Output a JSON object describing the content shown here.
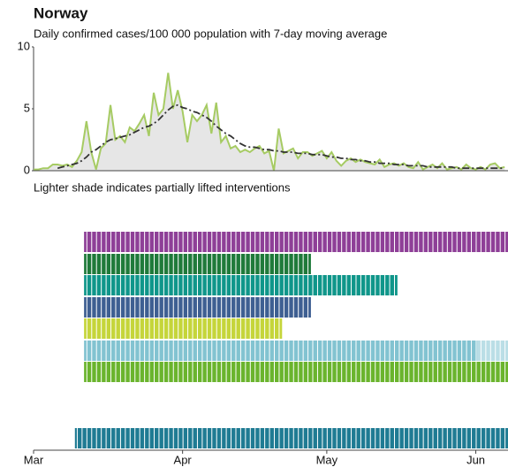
{
  "chart_data": [
    {
      "type": "line",
      "title": "Norway",
      "subtitle": "Daily confirmed cases/100 000 population with 7-day moving average",
      "x": [
        0,
        1,
        2,
        3,
        4,
        5,
        6,
        7,
        8,
        9,
        10,
        11,
        12,
        13,
        14,
        15,
        16,
        17,
        18,
        19,
        20,
        21,
        22,
        23,
        24,
        25,
        26,
        27,
        28,
        29,
        30,
        31,
        32,
        33,
        34,
        35,
        36,
        37,
        38,
        39,
        40,
        41,
        42,
        43,
        44,
        45,
        46,
        47,
        48,
        49,
        50,
        51,
        52,
        53,
        54,
        55,
        56,
        57,
        58,
        59,
        60,
        61,
        62,
        63,
        64,
        65,
        66,
        67,
        68,
        69,
        70,
        71,
        72,
        73,
        74,
        75,
        76,
        77,
        78,
        79,
        80,
        81,
        82,
        83,
        84,
        85,
        86,
        87,
        88,
        89,
        90,
        91,
        92,
        93,
        94,
        95,
        96,
        97,
        98
      ],
      "xlim": [
        0,
        98.7
      ],
      "ylim": [
        0,
        10
      ],
      "yticks": [
        0,
        5,
        10
      ],
      "series": [
        {
          "name": "Daily confirmed cases",
          "color": "#a6cb63",
          "area_color": "#e6e6e6",
          "values": [
            0.1,
            0.1,
            0.2,
            0.2,
            0.5,
            0.5,
            0.4,
            0.5,
            0.3,
            0.8,
            1.5,
            4.0,
            1.5,
            0.1,
            1.8,
            2.2,
            5.3,
            2.5,
            2.8,
            2.3,
            3.5,
            3.2,
            3.8,
            4.5,
            2.8,
            6.3,
            4.5,
            5.0,
            7.9,
            5.0,
            6.5,
            4.8,
            2.3,
            4.5,
            4.0,
            4.5,
            5.3,
            3.0,
            5.5,
            2.3,
            2.8,
            1.8,
            2.0,
            1.5,
            1.7,
            1.5,
            1.8,
            2.0,
            1.4,
            1.6,
            0.0,
            3.4,
            1.4,
            1.6,
            1.8,
            1.0,
            1.5,
            1.5,
            1.2,
            1.4,
            1.6,
            1.0,
            1.5,
            0.8,
            0.4,
            0.8,
            1.0,
            0.7,
            0.9,
            0.7,
            0.6,
            0.5,
            0.9,
            0.3,
            0.5,
            0.6,
            0.4,
            0.6,
            0.3,
            0.2,
            0.7,
            0.1,
            0.3,
            0.5,
            0.2,
            0.6,
            0.1,
            0.2,
            0.3,
            0.1,
            0.5,
            0.2,
            0.1,
            0.3,
            0.1,
            0.5,
            0.6,
            0.2,
            0.3
          ]
        },
        {
          "name": "7-day moving average",
          "color": "#333333",
          "values": [
            null,
            null,
            null,
            null,
            null,
            0.2,
            0.3,
            0.4,
            0.5,
            0.6,
            0.8,
            1.1,
            1.5,
            1.7,
            2.0,
            2.3,
            2.5,
            2.6,
            2.7,
            2.8,
            2.9,
            3.1,
            3.3,
            3.5,
            3.6,
            3.8,
            4.1,
            4.5,
            4.9,
            5.2,
            5.3,
            5.1,
            5.0,
            4.8,
            4.7,
            4.5,
            4.3,
            4.0,
            3.6,
            3.3,
            3.0,
            2.8,
            2.5,
            2.2,
            2.0,
            1.9,
            1.9,
            1.8,
            1.7,
            1.7,
            1.6,
            1.6,
            1.5,
            1.5,
            1.5,
            1.4,
            1.4,
            1.4,
            1.3,
            1.3,
            1.3,
            1.2,
            1.1,
            1.1,
            1.0,
            1.0,
            0.9,
            0.9,
            0.8,
            0.8,
            0.7,
            0.7,
            0.6,
            0.6,
            0.6,
            0.5,
            0.5,
            0.5,
            0.4,
            0.4,
            0.4,
            0.4,
            0.3,
            0.3,
            0.3,
            0.3,
            0.3,
            0.3,
            0.2,
            0.2,
            0.2,
            0.2,
            0.2,
            0.2,
            0.2,
            0.2,
            0.2,
            0.2,
            0.2
          ]
        }
      ]
    },
    {
      "type": "timeline",
      "note": "Lighter shade indicates partially lifted interventions",
      "xlim": [
        0,
        98.7
      ],
      "xticks": [
        {
          "value": 0,
          "label": "Mar"
        },
        {
          "value": 31,
          "label": "Apr"
        },
        {
          "value": 61,
          "label": "May"
        },
        {
          "value": 92,
          "label": "Jun"
        }
      ],
      "bars": [
        {
          "color": "#8e3f97",
          "start": 10.5,
          "end": 98.7
        },
        {
          "color": "#1f7a3a",
          "start": 10.5,
          "end": 57.7
        },
        {
          "color": "#0f968a",
          "start": 10.5,
          "end": 75.7
        },
        {
          "color": "#3e5f92",
          "start": 10.5,
          "end": 57.7
        },
        {
          "color": "#c5d53a",
          "start": 10.5,
          "end": 51.7
        },
        {
          "color": "#82c3d1",
          "start": 10.5,
          "end": 98.7,
          "lifted": 92.3
        },
        {
          "color": "#6ab42d",
          "start": 10.5,
          "end": 98.7
        },
        {
          "color": "#1f7b93",
          "start": 8.6,
          "end": 98.7
        }
      ]
    }
  ]
}
